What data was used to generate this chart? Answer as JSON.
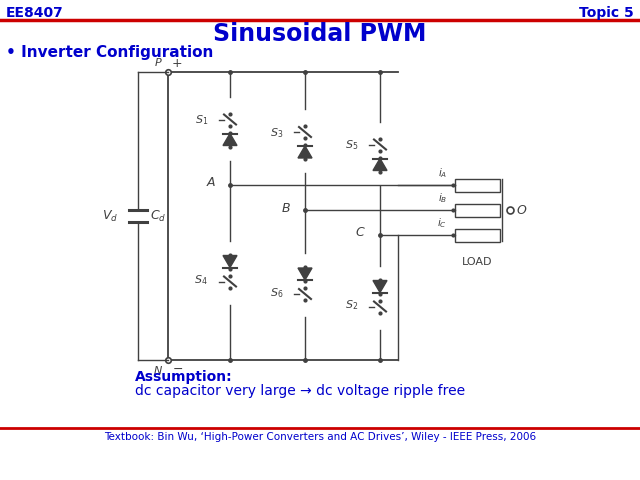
{
  "title": "Sinusoidal PWM",
  "top_left": "EE8407",
  "top_right": "Topic 5",
  "bullet": "• Inverter Configuration",
  "assumption_line1": "Assumption:",
  "assumption_line2": "dc capacitor very large → dc voltage ripple free",
  "footer": "Textbook: Bin Wu, ‘High-Power Converters and AC Drives’, Wiley - IEEE Press, 2006",
  "title_color": "#0000CC",
  "header_color": "#0000CC",
  "red_line_color": "#CC0000",
  "circuit_color": "#404040",
  "bg_color": "#FFFFFF",
  "assumption_color": "#0000CC",
  "footer_color": "#0000CC"
}
